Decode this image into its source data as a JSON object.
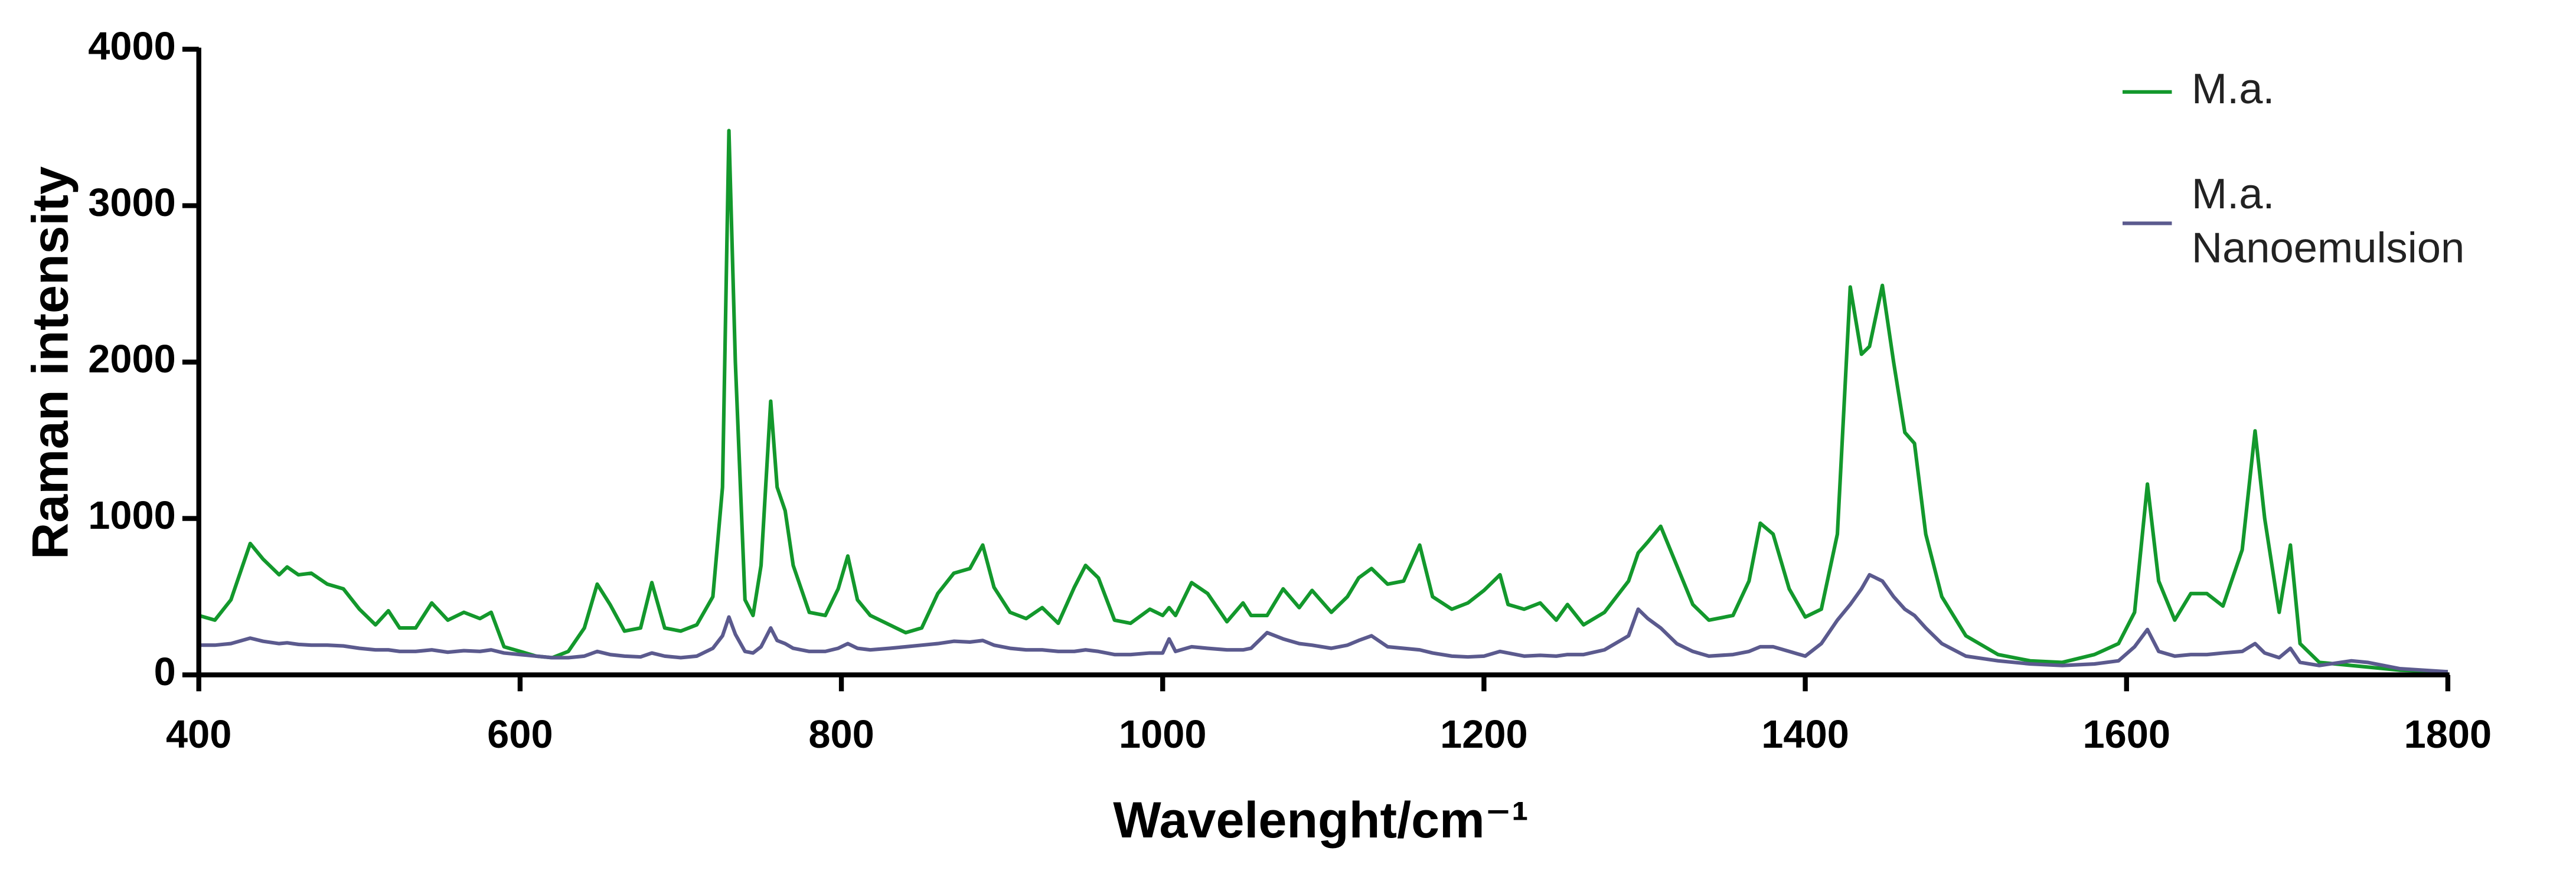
{
  "chart_data": {
    "type": "line",
    "x_label": "Wavelenght/cm⁻¹",
    "y_label": "Raman intensity",
    "xlim": [
      400,
      1800
    ],
    "ylim": [
      0,
      4000
    ],
    "xticks": [
      400,
      600,
      800,
      1000,
      1200,
      1400,
      1600,
      1800
    ],
    "yticks": [
      0,
      1000,
      2000,
      3000,
      4000
    ],
    "legend": "upper right",
    "x": [
      400,
      410,
      420,
      432,
      440,
      450,
      455,
      462,
      470,
      480,
      490,
      500,
      510,
      518,
      525,
      535,
      545,
      555,
      565,
      575,
      582,
      590,
      600,
      610,
      620,
      630,
      640,
      648,
      656,
      665,
      675,
      682,
      690,
      700,
      710,
      720,
      726,
      730,
      734,
      740,
      745,
      750,
      756,
      760,
      765,
      770,
      780,
      790,
      798,
      804,
      810,
      818,
      830,
      840,
      850,
      860,
      870,
      880,
      888,
      895,
      905,
      915,
      925,
      935,
      945,
      952,
      960,
      970,
      980,
      992,
      1000,
      1004,
      1008,
      1018,
      1028,
      1040,
      1050,
      1055,
      1065,
      1075,
      1085,
      1093,
      1105,
      1115,
      1122,
      1130,
      1140,
      1150,
      1160,
      1168,
      1180,
      1190,
      1200,
      1210,
      1215,
      1225,
      1235,
      1245,
      1252,
      1262,
      1275,
      1290,
      1296,
      1302,
      1310,
      1320,
      1330,
      1340,
      1355,
      1365,
      1372,
      1380,
      1390,
      1400,
      1410,
      1420,
      1428,
      1435,
      1440,
      1448,
      1455,
      1462,
      1468,
      1475,
      1485,
      1500,
      1520,
      1540,
      1560,
      1580,
      1595,
      1605,
      1613,
      1620,
      1630,
      1640,
      1650,
      1660,
      1672,
      1680,
      1686,
      1695,
      1702,
      1708,
      1720,
      1740,
      1750,
      1770,
      1800
    ],
    "series": [
      {
        "name": "M.a.",
        "color": "#13982c",
        "values": [
          380,
          350,
          480,
          840,
          740,
          640,
          690,
          640,
          650,
          580,
          550,
          420,
          320,
          410,
          300,
          300,
          460,
          350,
          400,
          360,
          400,
          180,
          150,
          120,
          110,
          150,
          300,
          580,
          450,
          280,
          300,
          590,
          300,
          280,
          320,
          500,
          1200,
          3480,
          2000,
          480,
          380,
          700,
          1750,
          1200,
          1050,
          700,
          400,
          380,
          550,
          760,
          480,
          380,
          320,
          270,
          300,
          520,
          650,
          680,
          830,
          560,
          400,
          360,
          430,
          330,
          560,
          700,
          620,
          350,
          330,
          420,
          380,
          430,
          380,
          590,
          520,
          340,
          460,
          380,
          380,
          550,
          430,
          540,
          400,
          500,
          620,
          680,
          580,
          600,
          830,
          500,
          420,
          460,
          540,
          640,
          450,
          420,
          460,
          350,
          450,
          320,
          400,
          600,
          780,
          850,
          950,
          700,
          450,
          350,
          380,
          600,
          970,
          900,
          550,
          370,
          420,
          900,
          2480,
          2050,
          2100,
          2490,
          2000,
          1550,
          1480,
          900,
          500,
          250,
          130,
          90,
          80,
          130,
          200,
          400,
          1220,
          600,
          350,
          520,
          520,
          440,
          800,
          1560,
          1000,
          400,
          830,
          200,
          80,
          60,
          50,
          30,
          20
        ]
      },
      {
        "name": "M.a. Nanoemulsion",
        "color": "#5b5a8e",
        "values": [
          190,
          190,
          200,
          235,
          215,
          200,
          205,
          195,
          190,
          190,
          185,
          170,
          160,
          160,
          150,
          150,
          160,
          145,
          155,
          150,
          160,
          140,
          130,
          120,
          110,
          110,
          120,
          150,
          130,
          120,
          115,
          140,
          120,
          110,
          120,
          170,
          250,
          370,
          260,
          150,
          140,
          180,
          300,
          220,
          200,
          170,
          150,
          150,
          170,
          200,
          170,
          160,
          170,
          180,
          190,
          200,
          215,
          210,
          220,
          190,
          170,
          160,
          160,
          150,
          150,
          160,
          150,
          130,
          130,
          140,
          140,
          230,
          150,
          180,
          170,
          160,
          160,
          170,
          270,
          230,
          200,
          190,
          170,
          190,
          220,
          250,
          180,
          170,
          160,
          140,
          120,
          115,
          120,
          150,
          140,
          120,
          125,
          120,
          130,
          130,
          160,
          250,
          420,
          360,
          300,
          200,
          150,
          120,
          130,
          150,
          180,
          180,
          150,
          120,
          200,
          350,
          450,
          550,
          640,
          600,
          500,
          420,
          380,
          300,
          200,
          120,
          90,
          70,
          60,
          70,
          90,
          180,
          290,
          150,
          120,
          130,
          130,
          140,
          150,
          200,
          140,
          110,
          170,
          80,
          60,
          90,
          80,
          40,
          20
        ]
      }
    ]
  }
}
